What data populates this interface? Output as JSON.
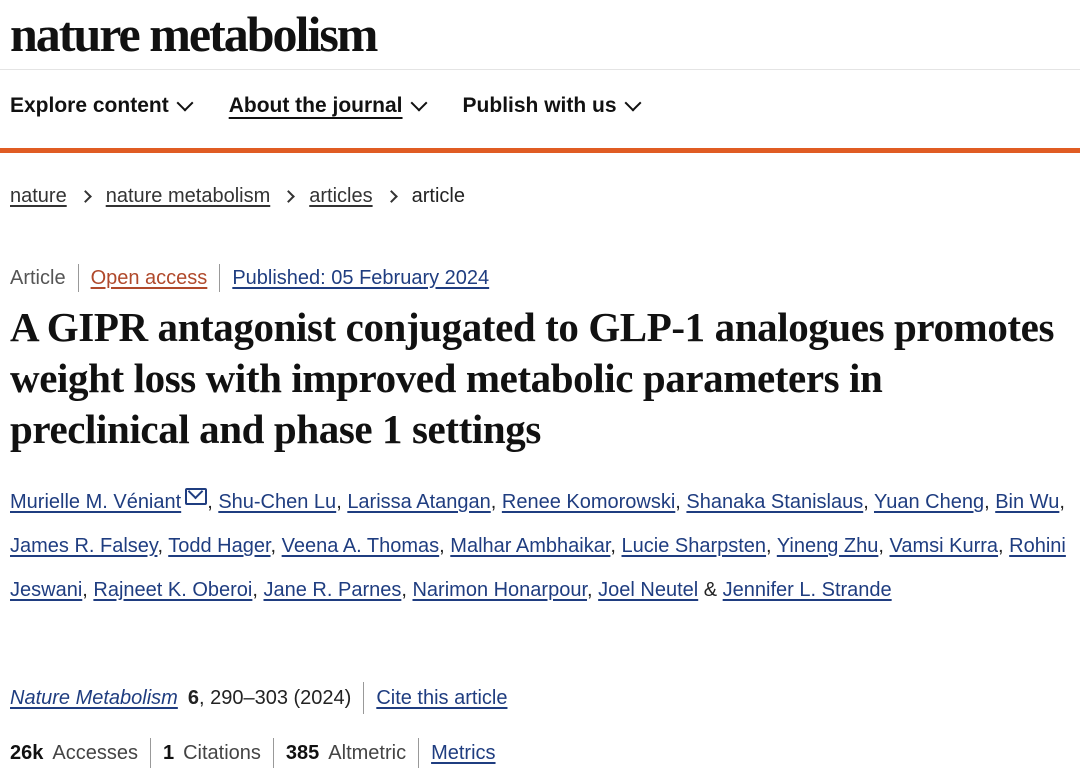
{
  "journal_logo": "nature metabolism",
  "nav": [
    {
      "label": "Explore content"
    },
    {
      "label": "About the journal"
    },
    {
      "label": "Publish with us"
    }
  ],
  "breadcrumb": [
    "nature",
    "nature metabolism",
    "articles",
    "article"
  ],
  "meta": {
    "type": "Article",
    "access": "Open access",
    "published": "Published: 05 February 2024"
  },
  "title": "A GIPR antagonist conjugated to GLP-1 analogues promotes weight loss with improved metabolic parameters in preclinical and phase 1 settings",
  "authors": [
    "Murielle M. Véniant",
    "Shu-Chen Lu",
    "Larissa Atangan",
    "Renee Komorowski",
    "Shanaka Stanislaus",
    "Yuan Cheng",
    "Bin Wu",
    "James R. Falsey",
    "Todd Hager",
    "Veena A. Thomas",
    "Malhar Ambhaikar",
    "Lucie Sharpsten",
    "Yineng Zhu",
    "Vamsi Kurra",
    "Rohini Jeswani",
    "Rajneet K. Oberoi",
    "Jane R. Parnes",
    "Narimon Honarpour",
    "Joel Neutel",
    "Jennifer L. Strande"
  ],
  "citation": {
    "journal": "Nature Metabolism",
    "volume": "6",
    "pages": ", 290–303 (2024)",
    "cite_link": "Cite this article"
  },
  "stats": {
    "accesses_value": "26k",
    "accesses_label": "Accesses",
    "citations_value": "1",
    "citations_label": "Citations",
    "altmetric_value": "385",
    "altmetric_label": "Altmetric",
    "metrics_link": "Metrics"
  }
}
